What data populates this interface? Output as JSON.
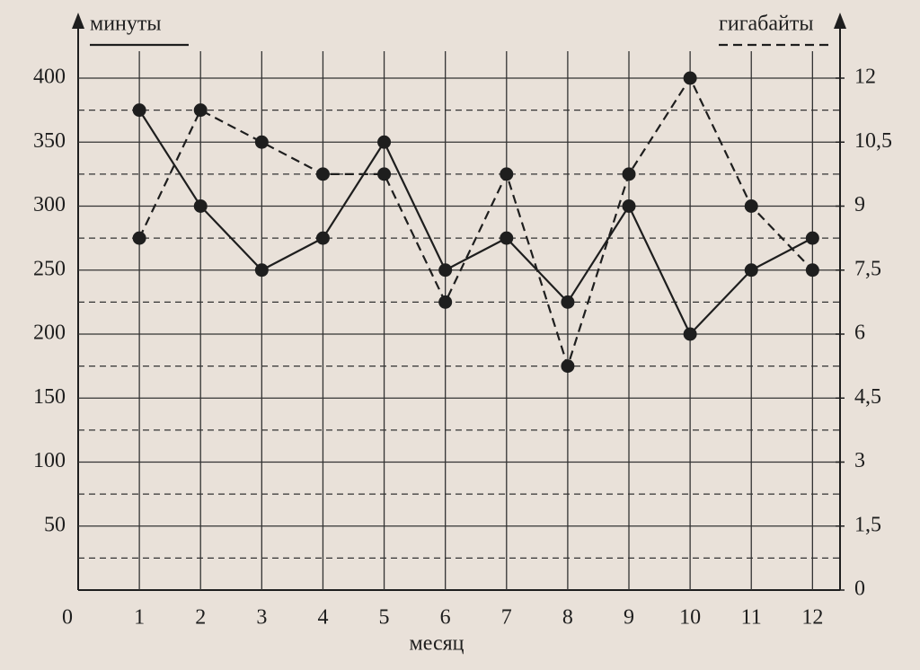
{
  "chart_data": {
    "type": "line",
    "x_label": "месяц",
    "x": [
      1,
      2,
      3,
      4,
      5,
      6,
      7,
      8,
      9,
      10,
      11,
      12
    ],
    "xlim": [
      0,
      12.45
    ],
    "xticks": [
      0,
      1,
      2,
      3,
      4,
      5,
      6,
      7,
      8,
      9,
      10,
      11,
      12
    ],
    "ylim": [
      0,
      400
    ],
    "yticks": [
      50,
      100,
      150,
      200,
      250,
      300,
      350,
      400
    ],
    "minor_yticks": [
      25,
      75,
      125,
      175,
      225,
      275,
      325,
      375
    ],
    "y2lim": [
      0,
      12
    ],
    "y2ticks": [
      0,
      {
        "value": 1.5,
        "label": "1,5"
      },
      3,
      {
        "value": 4.5,
        "label": "4,5"
      },
      6,
      {
        "value": 7.5,
        "label": "7,5"
      },
      9,
      {
        "value": 10.5,
        "label": "10,5"
      },
      12
    ],
    "grid": true,
    "series": [
      {
        "name": "минуты",
        "color": "#1e1e1e",
        "style": "solid",
        "values": [
          375,
          300,
          250,
          275,
          350,
          250,
          275,
          225,
          300,
          200,
          250,
          275
        ]
      },
      {
        "name": "гигабайты",
        "color": "#1e1e1e",
        "style": "dashed",
        "axis": "y2",
        "values": [
          8.25,
          11.25,
          10.5,
          9.75,
          9.75,
          6.75,
          9.75,
          5.25,
          9.75,
          12,
          9,
          7.5
        ]
      }
    ]
  }
}
